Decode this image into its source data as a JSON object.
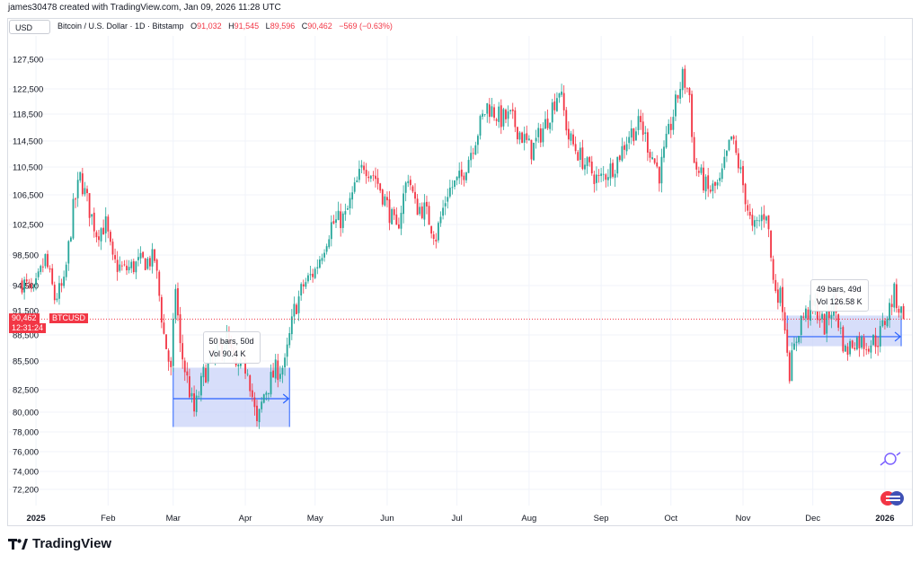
{
  "header": {
    "created_by": "james30478 created with TradingView.com, Jan 09, 2026 11:28 UTC",
    "currency_button": "USD",
    "symbol": "Bitcoin / U.S. Dollar · 1D · Bitstamp",
    "o_label": "O",
    "o_value": "91,032",
    "h_label": "H",
    "h_value": "91,545",
    "l_label": "L",
    "l_value": "89,596",
    "c_label": "C",
    "c_value": "90,462",
    "change": "−569 (−0.63%)"
  },
  "price_tag": {
    "price": "90,462",
    "symbol": "BTCUSD",
    "countdown": "12:31:24"
  },
  "measure_1": {
    "bars": "50 bars, 50d",
    "vol": "Vol 90.4 K"
  },
  "measure_2": {
    "bars": "49 bars, 49d",
    "vol": "Vol 126.58 K"
  },
  "brand": {
    "name": "TradingView"
  },
  "colors": {
    "up": "#26a69a",
    "down": "#f23645",
    "measure_fill": "#c9d3f8",
    "measure_line": "#2962ff",
    "grid": "#f0f3fa",
    "price_line": "#f23645"
  },
  "chart_data": {
    "type": "candlestick",
    "title": "Bitcoin / U.S. Dollar · 1D · Bitstamp",
    "x_ticks": [
      "2025",
      "Feb",
      "Mar",
      "Apr",
      "May",
      "Jun",
      "Jul",
      "Aug",
      "Sep",
      "Oct",
      "Nov",
      "Dec",
      "2026"
    ],
    "x_tick_dates": [
      "2025-01-01",
      "2025-02-01",
      "2025-03-01",
      "2025-04-01",
      "2025-05-01",
      "2025-06-01",
      "2025-07-01",
      "2025-08-01",
      "2025-09-01",
      "2025-10-01",
      "2025-11-01",
      "2025-12-01",
      "2026-01-01"
    ],
    "y_ticks": [
      72200,
      74000,
      76000,
      78000,
      80000,
      82500,
      85500,
      88500,
      91500,
      94500,
      98500,
      102500,
      106500,
      110500,
      114500,
      118500,
      122500,
      127500
    ],
    "x_range": [
      "2024-12-20",
      "2026-01-13"
    ],
    "y_range": [
      70800,
      130500
    ],
    "last_price": 90462,
    "grid": true,
    "series_path": [
      [
        "2024-12-26",
        95000
      ],
      [
        "2024-12-31",
        93400
      ],
      [
        "2025-01-05",
        98000
      ],
      [
        "2025-01-09",
        93000
      ],
      [
        "2025-01-13",
        94500
      ],
      [
        "2025-01-17",
        104500
      ],
      [
        "2025-01-20",
        109000
      ],
      [
        "2025-01-24",
        104500
      ],
      [
        "2025-01-27",
        101500
      ],
      [
        "2025-01-31",
        102500
      ],
      [
        "2025-02-03",
        97500
      ],
      [
        "2025-02-08",
        96500
      ],
      [
        "2025-02-15",
        97500
      ],
      [
        "2025-02-21",
        98000
      ],
      [
        "2025-02-25",
        88500
      ],
      [
        "2025-02-28",
        84200
      ],
      [
        "2025-03-02",
        94500
      ],
      [
        "2025-03-04",
        87000
      ],
      [
        "2025-03-10",
        80000
      ],
      [
        "2025-03-14",
        84000
      ],
      [
        "2025-03-19",
        86000
      ],
      [
        "2025-03-24",
        88000
      ],
      [
        "2025-03-28",
        84500
      ],
      [
        "2025-04-02",
        85000
      ],
      [
        "2025-04-06",
        78500
      ],
      [
        "2025-04-09",
        82000
      ],
      [
        "2025-04-14",
        84500
      ],
      [
        "2025-04-18",
        85000
      ],
      [
        "2025-04-22",
        91500
      ],
      [
        "2025-04-26",
        94500
      ],
      [
        "2025-05-01",
        96500
      ],
      [
        "2025-05-08",
        102500
      ],
      [
        "2025-05-14",
        103500
      ],
      [
        "2025-05-22",
        111000
      ],
      [
        "2025-05-27",
        109000
      ],
      [
        "2025-06-01",
        105000
      ],
      [
        "2025-06-05",
        101500
      ],
      [
        "2025-06-10",
        109500
      ],
      [
        "2025-06-13",
        105000
      ],
      [
        "2025-06-17",
        104500
      ],
      [
        "2025-06-22",
        101000
      ],
      [
        "2025-06-27",
        107000
      ],
      [
        "2025-07-03",
        109000
      ],
      [
        "2025-07-10",
        116000
      ],
      [
        "2025-07-14",
        119800
      ],
      [
        "2025-07-20",
        117800
      ],
      [
        "2025-07-24",
        118000
      ],
      [
        "2025-08-02",
        113000
      ],
      [
        "2025-08-08",
        117000
      ],
      [
        "2025-08-14",
        122500
      ],
      [
        "2025-08-18",
        115000
      ],
      [
        "2025-08-25",
        111000
      ],
      [
        "2025-08-31",
        108500
      ],
      [
        "2025-09-07",
        111000
      ],
      [
        "2025-09-13",
        115500
      ],
      [
        "2025-09-18",
        117000
      ],
      [
        "2025-09-22",
        113000
      ],
      [
        "2025-09-26",
        109500
      ],
      [
        "2025-10-01",
        117000
      ],
      [
        "2025-10-06",
        124500
      ],
      [
        "2025-10-09",
        121500
      ],
      [
        "2025-10-11",
        111000
      ],
      [
        "2025-10-17",
        107000
      ],
      [
        "2025-10-22",
        108000
      ],
      [
        "2025-10-27",
        115000
      ],
      [
        "2025-10-31",
        109500
      ],
      [
        "2025-11-05",
        101500
      ],
      [
        "2025-11-11",
        104500
      ],
      [
        "2025-11-14",
        95000
      ],
      [
        "2025-11-18",
        92500
      ],
      [
        "2025-11-21",
        84500
      ],
      [
        "2025-11-26",
        90500
      ],
      [
        "2025-12-02",
        92000
      ],
      [
        "2025-12-06",
        89500
      ],
      [
        "2025-12-10",
        92500
      ],
      [
        "2025-12-15",
        86500
      ],
      [
        "2025-12-19",
        88000
      ],
      [
        "2025-12-24",
        87500
      ],
      [
        "2025-12-29",
        88000
      ],
      [
        "2026-01-02",
        91000
      ],
      [
        "2026-01-05",
        93500
      ],
      [
        "2026-01-09",
        90462
      ]
    ],
    "measurements": [
      {
        "start": "2025-03-01",
        "end": "2025-04-20",
        "low": 78500,
        "high": 84800,
        "mid": 81500,
        "bars": 50,
        "days": 50,
        "volume_k": 90.4
      },
      {
        "start": "2025-11-20",
        "end": "2026-01-08",
        "low": 87200,
        "high": 90900,
        "mid": 88300,
        "bars": 49,
        "days": 49,
        "volume_k": 126.58
      }
    ]
  }
}
